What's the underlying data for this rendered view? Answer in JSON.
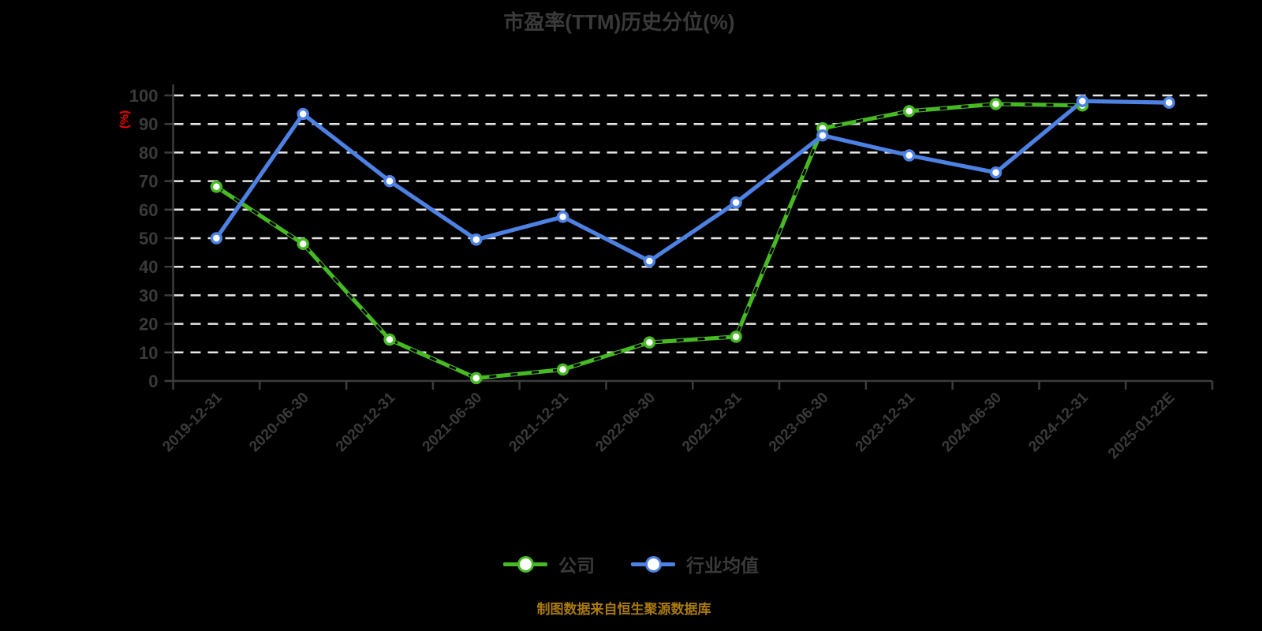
{
  "title": "市盈率(TTM)历史分位(%)",
  "y_axis_unit_label": "(%)",
  "source_note": "制图数据来自恒生聚源数据库",
  "colors": {
    "background": "#000000",
    "title_text": "#3a3a3a",
    "axis": "#3c3c3c",
    "tick_label": "#3a3a3a",
    "gridline": "#e6e6e6",
    "unit_label_red": "#f10000",
    "source_text": "#aa7a0c",
    "company_green": "#46b923",
    "industry_blue": "#4d81e3"
  },
  "legend": {
    "items": [
      {
        "name": "公司",
        "color": "#46b923"
      },
      {
        "name": "行业均值",
        "color": "#4d81e3"
      }
    ],
    "position": "bottom-center"
  },
  "chart_data": {
    "type": "line",
    "title": "市盈率(TTM)历史分位(%)",
    "xlabel": "",
    "ylabel": "(%)",
    "ylim": [
      0,
      100
    ],
    "ytick_step": 10,
    "grid": "horizontal-dashed-white-on-black",
    "legend_position": "bottom-center",
    "categories": [
      "2019-12-31",
      "2020-06-30",
      "2020-12-31",
      "2021-06-30",
      "2021-12-31",
      "2022-06-30",
      "2022-12-31",
      "2023-06-30",
      "2023-12-31",
      "2024-06-30",
      "2024-12-31",
      "2025-01-22E"
    ],
    "series": [
      {
        "name": "公司",
        "color": "#46b923",
        "line_style": "solid-with-black-dash-overlay",
        "marker": "circle-white-fill",
        "values": [
          68,
          48,
          14.5,
          1,
          4,
          13.5,
          15.5,
          88.5,
          94.5,
          97,
          96.5,
          null
        ]
      },
      {
        "name": "行业均值",
        "color": "#4d81e3",
        "line_style": "solid",
        "marker": "circle-white-fill",
        "values": [
          50,
          93.5,
          70,
          49.5,
          57.5,
          42,
          62.5,
          86,
          79,
          73,
          98,
          97.5
        ]
      }
    ]
  }
}
